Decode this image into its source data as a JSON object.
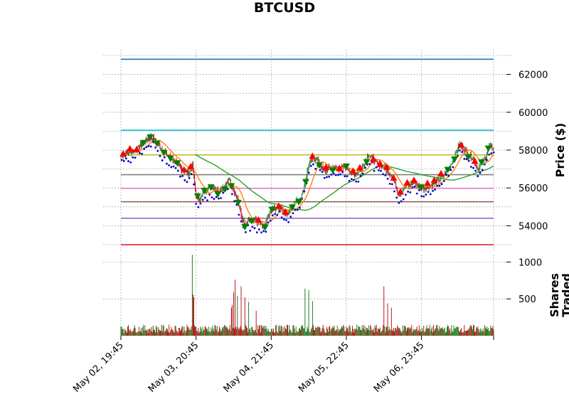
{
  "chart_data": {
    "type": "candlestick",
    "title": "BTCUSD",
    "price_panel": {
      "ylabel": "Price ($)",
      "ylim": [
        52700,
        63300
      ],
      "yticks": [
        54000,
        56000,
        58000,
        60000,
        62000
      ],
      "ytick_labels": [
        "54000",
        "56000",
        "58000",
        "60000",
        "62000"
      ],
      "grid": true
    },
    "volume_panel": {
      "ylabel": "Shares\nTraded",
      "ylim": [
        0,
        1100
      ],
      "yticks": [
        500,
        1000
      ],
      "ytick_labels": [
        "500",
        "1000"
      ],
      "grid": true
    },
    "x_range": [
      0,
      496
    ],
    "xticks": [
      0,
      100,
      200,
      300,
      400,
      496
    ],
    "xtick_labels": [
      "May 02, 19:45",
      "May 03, 20:45",
      "May 04, 21:45",
      "May 05, 22:45",
      "May 06, 23:45",
      ""
    ],
    "horizontal_levels": [
      {
        "value": 62800,
        "color": "#1f77b4"
      },
      {
        "value": 59050,
        "color": "#17becf"
      },
      {
        "value": 57750,
        "color": "#bcbd22"
      },
      {
        "value": 56700,
        "color": "#7f7f7f"
      },
      {
        "value": 55980,
        "color": "#e377c2"
      },
      {
        "value": 55270,
        "color": "#8c564b"
      },
      {
        "value": 54400,
        "color": "#9467bd"
      },
      {
        "value": 53000,
        "color": "#d62728"
      }
    ],
    "close_anchors": [
      [
        0,
        57700
      ],
      [
        10,
        57900
      ],
      [
        20,
        58000
      ],
      [
        30,
        58400
      ],
      [
        40,
        58700
      ],
      [
        50,
        58300
      ],
      [
        60,
        57800
      ],
      [
        70,
        57500
      ],
      [
        80,
        57000
      ],
      [
        90,
        56800
      ],
      [
        95,
        57200
      ],
      [
        100,
        55600
      ],
      [
        105,
        55400
      ],
      [
        110,
        55800
      ],
      [
        120,
        56100
      ],
      [
        130,
        55800
      ],
      [
        140,
        56200
      ],
      [
        145,
        56400
      ],
      [
        150,
        55900
      ],
      [
        155,
        55500
      ],
      [
        160,
        54500
      ],
      [
        165,
        54000
      ],
      [
        170,
        54200
      ],
      [
        180,
        54300
      ],
      [
        190,
        53900
      ],
      [
        200,
        54900
      ],
      [
        210,
        55000
      ],
      [
        220,
        54600
      ],
      [
        230,
        55200
      ],
      [
        240,
        55500
      ],
      [
        245,
        56200
      ],
      [
        250,
        57300
      ],
      [
        260,
        57600
      ],
      [
        270,
        56900
      ],
      [
        280,
        57100
      ],
      [
        290,
        57000
      ],
      [
        300,
        57100
      ],
      [
        310,
        56700
      ],
      [
        320,
        57000
      ],
      [
        330,
        57800
      ],
      [
        340,
        57300
      ],
      [
        350,
        57100
      ],
      [
        360,
        56700
      ],
      [
        370,
        55700
      ],
      [
        380,
        56100
      ],
      [
        390,
        56300
      ],
      [
        400,
        56000
      ],
      [
        410,
        56100
      ],
      [
        420,
        56300
      ],
      [
        430,
        56700
      ],
      [
        440,
        57300
      ],
      [
        450,
        58300
      ],
      [
        460,
        57900
      ],
      [
        470,
        57500
      ],
      [
        475,
        57000
      ],
      [
        480,
        57300
      ],
      [
        485,
        57600
      ],
      [
        490,
        58200
      ],
      [
        496,
        58100
      ]
    ],
    "ma_short": {
      "color": "#ff7f0e",
      "window": 20
    },
    "ma_long": {
      "color": "#2ca02c",
      "window": 100
    },
    "candle_colors": {
      "up": "#1a7a1a",
      "down": "#b01010"
    },
    "marker_colors": {
      "up_triangle": "#ff0000",
      "down_triangle": "#008000",
      "dot": "#0000cc"
    },
    "volume_spikes": [
      [
        95,
        1100
      ],
      [
        96,
        560
      ],
      [
        97,
        520
      ],
      [
        147,
        380
      ],
      [
        148,
        420
      ],
      [
        150,
        590
      ],
      [
        152,
        760
      ],
      [
        155,
        540
      ],
      [
        160,
        670
      ],
      [
        165,
        520
      ],
      [
        170,
        460
      ],
      [
        180,
        340
      ],
      [
        245,
        640
      ],
      [
        250,
        620
      ],
      [
        255,
        470
      ],
      [
        350,
        670
      ],
      [
        355,
        440
      ],
      [
        360,
        380
      ]
    ],
    "volume_colors": {
      "up": "#1a7a1a",
      "down": "#b01010"
    }
  }
}
